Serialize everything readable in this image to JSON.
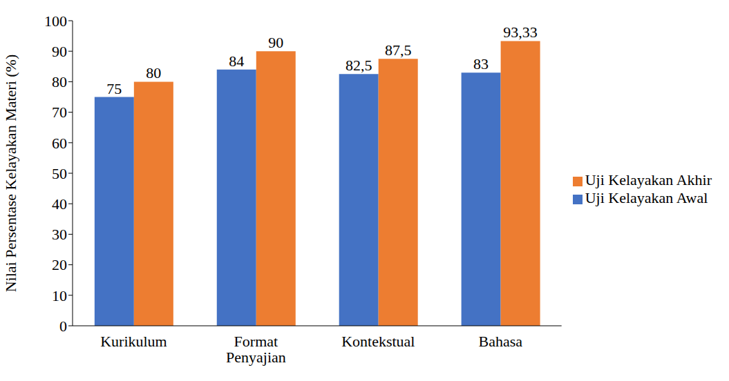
{
  "chart_data": {
    "type": "bar",
    "y_label": "Nilai Persentase Kelayakan Materi (%)",
    "categories": [
      "Kurikulum",
      "Format Penyajian",
      "Kontekstual",
      "Bahasa"
    ],
    "series": [
      {
        "name": "Uji Kelayakan Awal",
        "color": "#4472c4",
        "values": [
          75,
          84,
          82.5,
          83
        ],
        "value_labels": [
          "75",
          "84",
          "82,5",
          "83"
        ]
      },
      {
        "name": "Uji Kelayakan Akhir",
        "color": "#ed7d31",
        "values": [
          80,
          90,
          87.5,
          93.33
        ],
        "value_labels": [
          "80",
          "90",
          "87,5",
          "93,33"
        ]
      }
    ],
    "ylim": [
      0,
      100
    ],
    "yticks": [
      0,
      10,
      20,
      30,
      40,
      50,
      60,
      70,
      80,
      90,
      100
    ],
    "grid": false,
    "legend": "right",
    "data_labels": true
  }
}
